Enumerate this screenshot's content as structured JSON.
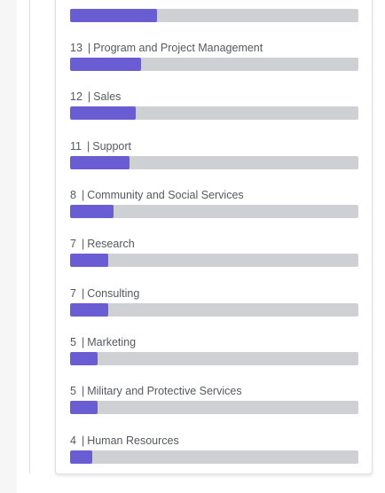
{
  "accent_color": "#6a5cd3",
  "track_color": "#cfd0d4",
  "max_value": 53,
  "categories": [
    {
      "count": "",
      "name": "",
      "value": 16
    },
    {
      "count": "13",
      "name": "Program and Project Management",
      "value": 13
    },
    {
      "count": "12",
      "name": "Sales",
      "value": 12
    },
    {
      "count": "11",
      "name": "Support",
      "value": 11
    },
    {
      "count": "8",
      "name": "Community and Social Services",
      "value": 8
    },
    {
      "count": "7",
      "name": "Research",
      "value": 7
    },
    {
      "count": "7",
      "name": "Consulting",
      "value": 7
    },
    {
      "count": "5",
      "name": "Marketing",
      "value": 5
    },
    {
      "count": "5",
      "name": "Military and Protective Services",
      "value": 5
    },
    {
      "count": "4",
      "name": "Human Resources",
      "value": 4
    }
  ]
}
